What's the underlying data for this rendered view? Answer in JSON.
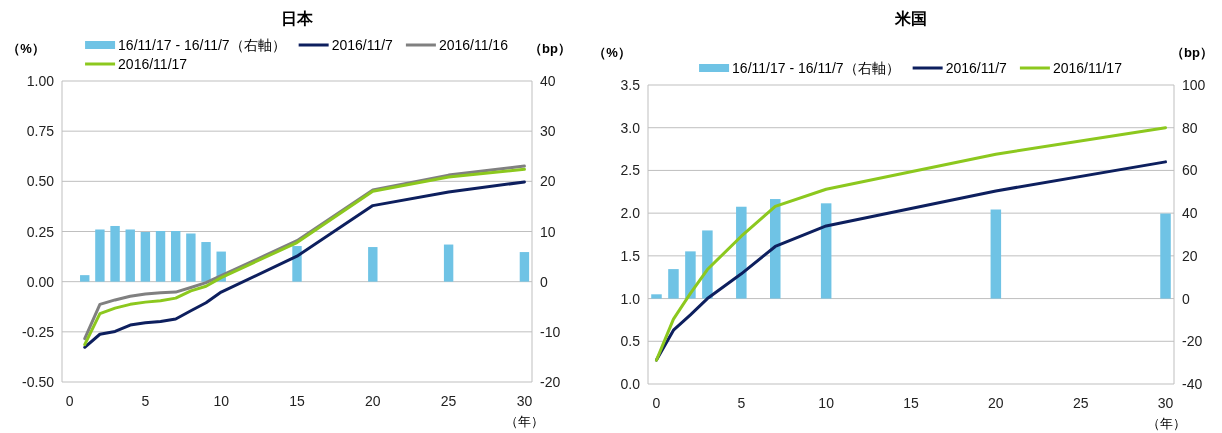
{
  "chart_data": [
    {
      "type": "line",
      "title": "日本",
      "ylabel": "（%）",
      "y2label": "（bp）",
      "xlabel": "（年）",
      "x": [
        1,
        2,
        3,
        4,
        5,
        6,
        7,
        8,
        9,
        10,
        15,
        20,
        25,
        30
      ],
      "xlim": [
        -0.5,
        30.5
      ],
      "xticks": [
        0,
        5,
        10,
        15,
        20,
        25,
        30
      ],
      "ylim": [
        -0.5,
        1
      ],
      "yticks": [
        {
          "value": -0.5,
          "label": "-0.50"
        },
        -0.25,
        {
          "value": 0,
          "label": "0.00"
        },
        0.25,
        {
          "value": 0.5,
          "label": "0.50"
        },
        0.75,
        {
          "value": 1,
          "label": "1.00"
        }
      ],
      "y2lim": [
        -20,
        40
      ],
      "y2ticks": [
        -20,
        -10,
        0,
        10,
        20,
        30,
        40
      ],
      "grid": "y",
      "legend": "top",
      "series": [
        {
          "name": "16/11/17 - 16/11/7（右軸）",
          "type": "bar",
          "axis": "y2",
          "color": "#6fc3e5",
          "values": [
            1.3,
            10.4,
            11.1,
            10.4,
            9.9,
            10.1,
            10.1,
            9.6,
            7.9,
            6.0,
            7.1,
            6.9,
            7.4,
            5.9
          ]
        },
        {
          "name": "2016/11/7",
          "color": "#0d1f5e",
          "values": [
            -0.327,
            -0.262,
            -0.248,
            -0.216,
            -0.205,
            -0.198,
            -0.186,
            -0.145,
            -0.105,
            -0.052,
            0.127,
            0.379,
            0.447,
            0.497
          ]
        },
        {
          "name": "2016/11/16",
          "color": "#808080",
          "values": [
            -0.284,
            -0.113,
            -0.091,
            -0.073,
            -0.061,
            -0.055,
            -0.052,
            -0.029,
            -0.005,
            0.03,
            0.204,
            0.457,
            0.531,
            0.576
          ]
        },
        {
          "name": "2016/11/17",
          "color": "#8cc81e",
          "values": [
            -0.314,
            -0.159,
            -0.132,
            -0.113,
            -0.102,
            -0.095,
            -0.082,
            -0.046,
            -0.023,
            0.02,
            0.195,
            0.451,
            0.522,
            0.56
          ]
        }
      ]
    },
    {
      "type": "line",
      "title": "米国",
      "ylabel": "（%）",
      "y2label": "（bp）",
      "xlabel": "（年）",
      "x": [
        0,
        1,
        2,
        3,
        5,
        7,
        10,
        20,
        30
      ],
      "xlim": [
        -0.5,
        30.5
      ],
      "xticks": [
        0,
        5,
        10,
        15,
        20,
        25,
        30
      ],
      "ylim": [
        0,
        3.5
      ],
      "yticks": [
        {
          "value": 0,
          "label": "0.0"
        },
        0.5,
        {
          "value": 1,
          "label": "1.0"
        },
        1.5,
        {
          "value": 2,
          "label": "2.0"
        },
        2.5,
        {
          "value": 3,
          "label": "3.0"
        },
        3.5
      ],
      "y2lim": [
        -40,
        100
      ],
      "y2ticks": [
        -40,
        -20,
        0,
        20,
        40,
        60,
        80,
        100
      ],
      "grid": "y",
      "legend": "top",
      "series": [
        {
          "name": "16/11/17 - 16/11/7（右軸）",
          "type": "bar",
          "axis": "y2",
          "color": "#6fc3e5",
          "values": [
            2,
            13.8,
            22.1,
            31.9,
            43,
            46.6,
            44.6,
            41.7,
            39.8
          ]
        },
        {
          "name": "2016/11/7",
          "color": "#0d1f5e",
          "values": [
            0.28,
            0.63,
            0.81,
            1.0,
            1.29,
            1.61,
            1.85,
            2.26,
            2.6
          ]
        },
        {
          "name": "2016/11/17",
          "color": "#8cc81e",
          "values": [
            0.28,
            0.76,
            1.06,
            1.34,
            1.73,
            2.08,
            2.28,
            2.69,
            3.0
          ]
        }
      ]
    }
  ]
}
